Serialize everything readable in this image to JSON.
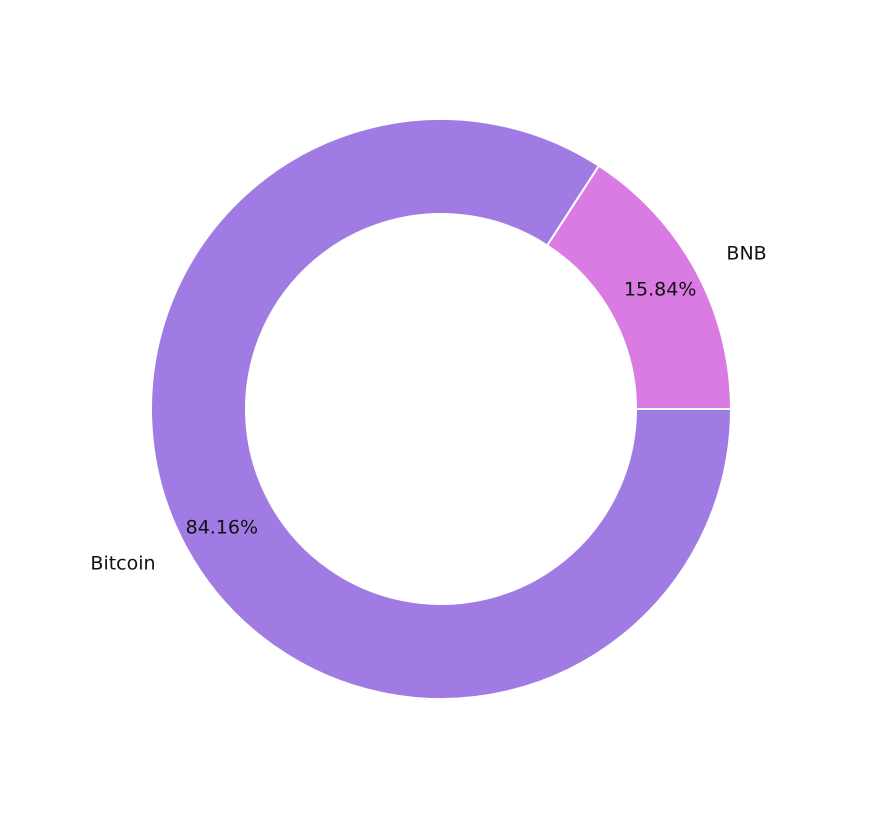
{
  "chart_data": {
    "type": "donut",
    "categories": [
      "BNB",
      "Bitcoin"
    ],
    "values": [
      15.84,
      84.16
    ],
    "value_labels": [
      "15.84%",
      "84.16%"
    ],
    "colors": [
      "#d97be3",
      "#a07be3"
    ]
  }
}
